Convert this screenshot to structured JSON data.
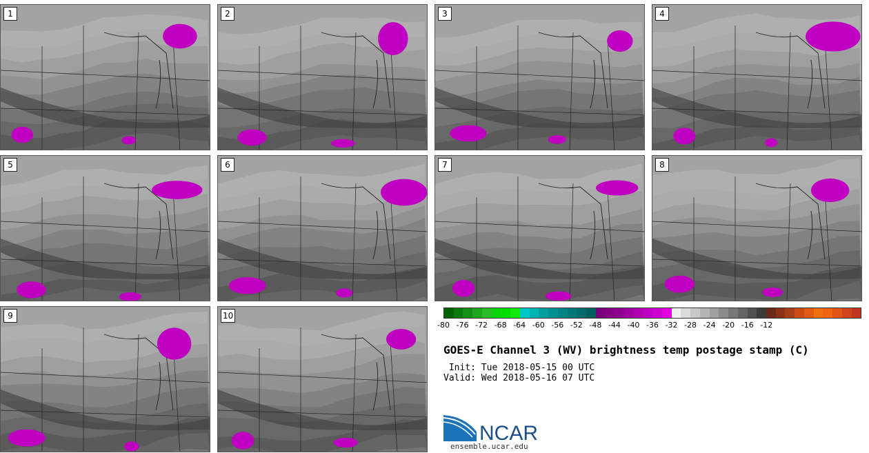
{
  "panels": [
    {
      "label": "1"
    },
    {
      "label": "2"
    },
    {
      "label": "3"
    },
    {
      "label": "4"
    },
    {
      "label": "5"
    },
    {
      "label": "6"
    },
    {
      "label": "7"
    },
    {
      "label": "8"
    },
    {
      "label": "9"
    },
    {
      "label": "10"
    }
  ],
  "colorbar": {
    "colors": [
      "#006400",
      "#0a7a0a",
      "#149014",
      "#1ea61e",
      "#28bc28",
      "#0ad40a",
      "#00e000",
      "#10e810",
      "#00c8c8",
      "#00b4b4",
      "#00a0a0",
      "#009090",
      "#008484",
      "#007878",
      "#006c6c",
      "#006060",
      "#780078",
      "#840084",
      "#900090",
      "#a000a0",
      "#b000b0",
      "#c000c0",
      "#d000d0",
      "#e000e0",
      "#f0f0f0",
      "#dcdcdc",
      "#c8c8c8",
      "#b4b4b4",
      "#a0a0a0",
      "#8c8c8c",
      "#787878",
      "#646464",
      "#505050",
      "#3c3c3c",
      "#6a2a1a",
      "#8a3218",
      "#a83e16",
      "#c84c14",
      "#e05a12",
      "#f07010",
      "#f06414",
      "#e05418",
      "#d0441c",
      "#c03420"
    ],
    "ticks": [
      "-80",
      "-76",
      "-72",
      "-68",
      "-64",
      "-60",
      "-56",
      "-52",
      "-48",
      "-44",
      "-40",
      "-36",
      "-32",
      "-28",
      "-24",
      "-20",
      "-16",
      "-12"
    ]
  },
  "title": "GOES-E Channel 3 (WV) brightness temp postage stamp (C)",
  "init_line": " Init: Tue 2018-05-15 00 UTC",
  "valid_line": "Valid: Wed 2018-05-16 07 UTC",
  "logo": {
    "text": "NCAR",
    "url": "ensemble.ucar.edu"
  }
}
